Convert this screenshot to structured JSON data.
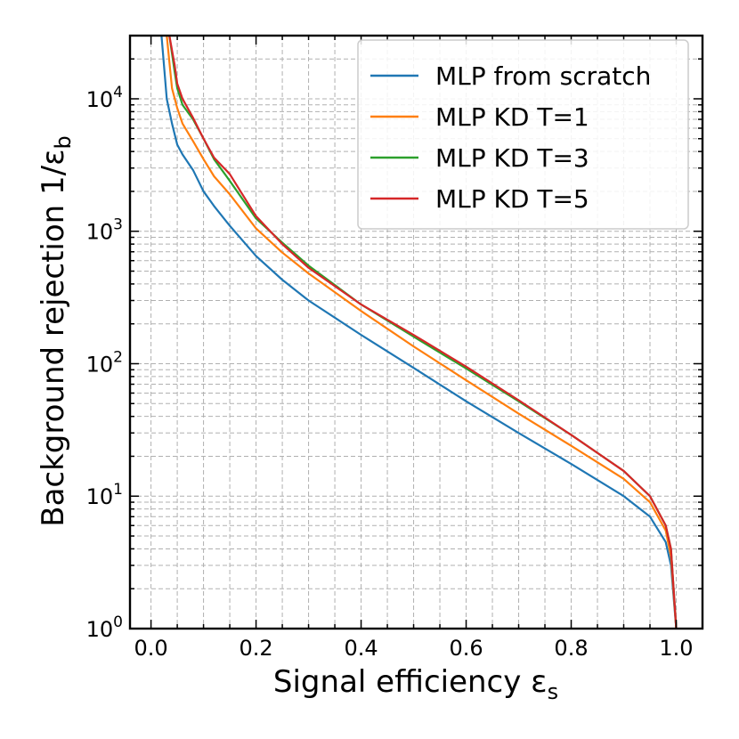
{
  "chart_data": {
    "type": "line",
    "xlabel": "Signal efficiency ε",
    "xlabel_sub": "s",
    "ylabel": "Background rejection 1/ε",
    "ylabel_sub": "b",
    "xlim": [
      -0.04,
      1.05
    ],
    "ylim": [
      1,
      30000
    ],
    "yscale": "log",
    "grid": true,
    "legend_position": "top-right",
    "x_ticks": [
      {
        "value": 0.0,
        "label": "0.0"
      },
      {
        "value": 0.2,
        "label": "0.2"
      },
      {
        "value": 0.4,
        "label": "0.4"
      },
      {
        "value": 0.6,
        "label": "0.6"
      },
      {
        "value": 0.8,
        "label": "0.8"
      },
      {
        "value": 1.0,
        "label": "1.0"
      }
    ],
    "y_ticks": [
      {
        "value": 1,
        "base": "10",
        "exp": "0"
      },
      {
        "value": 10,
        "base": "10",
        "exp": "1"
      },
      {
        "value": 100,
        "base": "10",
        "exp": "2"
      },
      {
        "value": 1000,
        "base": "10",
        "exp": "3"
      },
      {
        "value": 10000,
        "base": "10",
        "exp": "4"
      }
    ],
    "series": [
      {
        "name": "MLP from scratch",
        "color": "#1f77b4",
        "x": [
          0.02,
          0.03,
          0.04,
          0.05,
          0.06,
          0.08,
          0.1,
          0.12,
          0.15,
          0.2,
          0.25,
          0.3,
          0.4,
          0.5,
          0.6,
          0.7,
          0.8,
          0.9,
          0.95,
          0.98,
          0.99,
          1.0
        ],
        "y": [
          30000,
          10000,
          6500,
          4500,
          3800,
          2900,
          2000,
          1550,
          1100,
          650,
          430,
          300,
          165,
          93,
          52,
          30,
          17.5,
          10,
          7,
          4.5,
          3,
          1
        ]
      },
      {
        "name": "MLP KD T=1",
        "color": "#ff7f0e",
        "x": [
          0.03,
          0.04,
          0.05,
          0.06,
          0.08,
          0.1,
          0.12,
          0.15,
          0.2,
          0.25,
          0.3,
          0.4,
          0.5,
          0.6,
          0.7,
          0.8,
          0.9,
          0.95,
          0.98,
          0.99,
          1.0
        ],
        "y": [
          30000,
          12000,
          8500,
          6500,
          4800,
          3500,
          2600,
          1900,
          1050,
          690,
          480,
          250,
          135,
          75,
          42,
          24,
          13.5,
          9,
          5.5,
          3.5,
          1
        ]
      },
      {
        "name": "MLP KD T=3",
        "color": "#2ca02c",
        "x": [
          0.035,
          0.045,
          0.05,
          0.06,
          0.08,
          0.1,
          0.12,
          0.15,
          0.2,
          0.25,
          0.3,
          0.4,
          0.5,
          0.6,
          0.7,
          0.8,
          0.9,
          0.95,
          0.98,
          0.99,
          1.0
        ],
        "y": [
          30000,
          16000,
          12000,
          9000,
          7000,
          5000,
          3500,
          2400,
          1250,
          820,
          550,
          280,
          160,
          92,
          52,
          29,
          15.5,
          10,
          6,
          4,
          1
        ]
      },
      {
        "name": "MLP KD T=5",
        "color": "#d62728",
        "x": [
          0.035,
          0.045,
          0.05,
          0.06,
          0.08,
          0.1,
          0.12,
          0.15,
          0.2,
          0.25,
          0.3,
          0.4,
          0.5,
          0.6,
          0.7,
          0.8,
          0.9,
          0.95,
          0.98,
          0.99,
          1.0
        ],
        "y": [
          30000,
          18000,
          13000,
          10000,
          7200,
          5000,
          3600,
          2700,
          1300,
          800,
          530,
          280,
          165,
          95,
          53,
          29,
          15.5,
          10,
          6,
          4,
          1
        ]
      }
    ]
  }
}
